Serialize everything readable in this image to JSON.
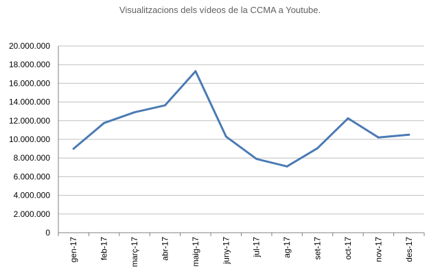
{
  "chart_data": {
    "type": "line",
    "title": "Visualitzacions dels vídeos de la CCMA a Youtube.",
    "categories": [
      "gen-17",
      "feb-17",
      "març-17",
      "abr-17",
      "maig-17",
      "juny-17",
      "jul-17",
      "ag-17",
      "set-17",
      "oct-17",
      "nov-17",
      "des-17"
    ],
    "series": [
      {
        "values": [
          9000000,
          11750000,
          12900000,
          13650000,
          17300000,
          10300000,
          7900000,
          7100000,
          9050000,
          12250000,
          10200000,
          10500000
        ]
      }
    ],
    "ylim": [
      0,
      20000000
    ],
    "yticks": [
      "0",
      "2.000.000",
      "4.000.000",
      "6.000.000",
      "8.000.000",
      "10.000.000",
      "12.000.000",
      "14.000.000",
      "16.000.000",
      "18.000.000",
      "20.000.000"
    ],
    "grid": true,
    "legend": "none",
    "colors": {
      "line": "#4a7ab4",
      "grid": "#bfbfbf",
      "axis": "#7f7f7f"
    }
  }
}
